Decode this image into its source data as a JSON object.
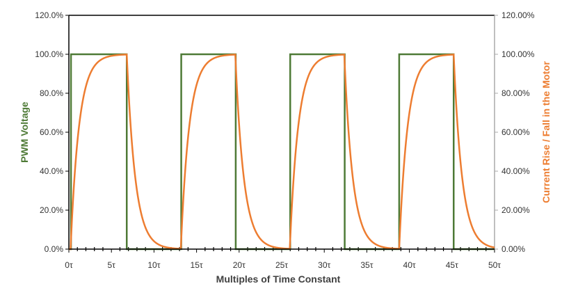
{
  "chart_data": {
    "type": "line",
    "xlabel": "Multiples of Time Constant",
    "ylabel": "PWM Voltage",
    "y2label": "Current Rise / Fall in the Motor",
    "xlim": [
      0,
      50
    ],
    "ylim": [
      0,
      120
    ],
    "y2lim": [
      0,
      120
    ],
    "x_ticks": [
      0,
      5,
      10,
      15,
      20,
      25,
      30,
      35,
      40,
      45,
      50
    ],
    "x_tick_labels": [
      "0τ",
      "5τ",
      "10τ",
      "15τ",
      "20τ",
      "25τ",
      "30τ",
      "35τ",
      "40τ",
      "45τ",
      "50τ"
    ],
    "y_ticks": [
      0,
      20,
      40,
      60,
      80,
      100,
      120
    ],
    "y_tick_labels": [
      "0.0%",
      "20.0%",
      "40.0%",
      "60.0%",
      "80.0%",
      "100.0%",
      "120.0%"
    ],
    "y2_tick_labels": [
      "0.00%",
      "20.00%",
      "40.00%",
      "60.00%",
      "80.00%",
      "100.00%",
      "120.00%"
    ],
    "pulses": [
      {
        "rise": 0.25,
        "fall": 6.8
      },
      {
        "rise": 13.2,
        "fall": 19.6
      },
      {
        "rise": 26.0,
        "fall": 32.4
      },
      {
        "rise": 38.8,
        "fall": 45.2
      }
    ],
    "time_constant": 1,
    "series": [
      {
        "axis": "left",
        "color": "#4e7a36",
        "shape": "square-wave"
      },
      {
        "axis": "right",
        "color": "#ed7d31",
        "shape": "exponential-rise-fall"
      }
    ],
    "grid": false,
    "legend": "none"
  }
}
